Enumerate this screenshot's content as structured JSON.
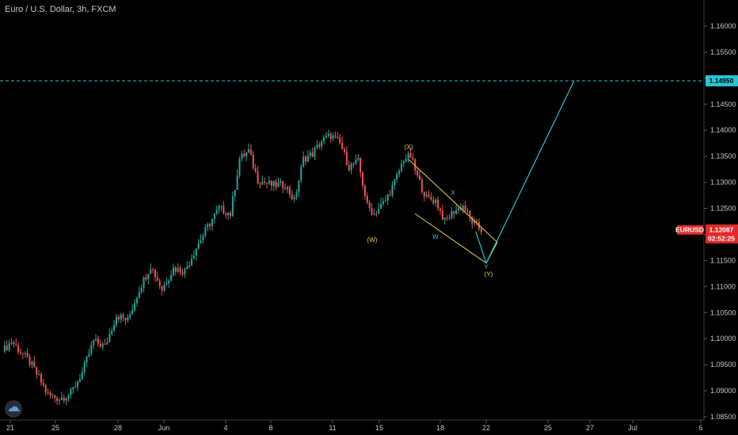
{
  "header": {
    "title": "Euro / U.S. Dollar, 3h, FXCM"
  },
  "colors": {
    "background": "#000000",
    "bull": "#26a69a",
    "bear": "#ef5350",
    "wave_yellow": "#e6d34a",
    "wave_cyan": "#29c5d6",
    "target_line": "#29c5d6",
    "price_tag": "#e02a2a"
  },
  "price_axis": {
    "ticks": [
      "1.16000",
      "1.15500",
      "1.15000",
      "1.14500",
      "1.14000",
      "1.13500",
      "1.13000",
      "1.12500",
      "1.12000",
      "1.11500",
      "1.11000",
      "1.10500",
      "1.10000",
      "1.09500",
      "1.09000",
      "1.08500"
    ]
  },
  "time_axis": {
    "ticks": [
      "21",
      "25",
      "28",
      "Jun",
      "4",
      "8",
      "11",
      "15",
      "18",
      "22",
      "25",
      "27",
      "Jul",
      "6"
    ]
  },
  "target": {
    "price_label": "1.14950",
    "price": 1.1495
  },
  "current_price": {
    "symbol": "EURUSD",
    "price": "1.12087",
    "countdown": "02:52:25"
  },
  "wave_labels": {
    "W_paren": "(W)",
    "X_paren": "(X)",
    "w": "W",
    "x": "X",
    "y": "Y",
    "Y_paren": "(Y)"
  },
  "chart_data": {
    "type": "candlestick",
    "title": "Euro / U.S. Dollar, 3h, FXCM",
    "ylim": [
      1.083,
      1.1645
    ],
    "y_ticks": [
      1.16,
      1.155,
      1.15,
      1.145,
      1.14,
      1.135,
      1.13,
      1.125,
      1.12,
      1.115,
      1.11,
      1.105,
      1.1,
      1.095,
      1.09,
      1.085
    ],
    "x_ticks": [
      "21",
      "25",
      "28",
      "Jun",
      "4",
      "8",
      "11",
      "15",
      "18",
      "22",
      "25",
      "27",
      "Jul",
      "6"
    ],
    "close_path": [
      {
        "i": 0,
        "p": 1.0975
      },
      {
        "i": 4,
        "p": 1.0995
      },
      {
        "i": 8,
        "p": 1.0975
      },
      {
        "i": 12,
        "p": 1.0955
      },
      {
        "i": 16,
        "p": 1.0925
      },
      {
        "i": 20,
        "p": 1.0892
      },
      {
        "i": 25,
        "p": 1.0885
      },
      {
        "i": 30,
        "p": 1.0895
      },
      {
        "i": 35,
        "p": 1.0935
      },
      {
        "i": 40,
        "p": 1.0995
      },
      {
        "i": 45,
        "p": 1.0985
      },
      {
        "i": 50,
        "p": 1.1045
      },
      {
        "i": 55,
        "p": 1.1035
      },
      {
        "i": 60,
        "p": 1.1095
      },
      {
        "i": 65,
        "p": 1.114
      },
      {
        "i": 70,
        "p": 1.1095
      },
      {
        "i": 75,
        "p": 1.1135
      },
      {
        "i": 80,
        "p": 1.113
      },
      {
        "i": 85,
        "p": 1.1175
      },
      {
        "i": 90,
        "p": 1.1215
      },
      {
        "i": 95,
        "p": 1.125
      },
      {
        "i": 100,
        "p": 1.124
      },
      {
        "i": 104,
        "p": 1.1345
      },
      {
        "i": 108,
        "p": 1.136
      },
      {
        "i": 112,
        "p": 1.1305
      },
      {
        "i": 118,
        "p": 1.1295
      },
      {
        "i": 124,
        "p": 1.1295
      },
      {
        "i": 128,
        "p": 1.1265
      },
      {
        "i": 132,
        "p": 1.1345
      },
      {
        "i": 136,
        "p": 1.1355
      },
      {
        "i": 140,
        "p": 1.138
      },
      {
        "i": 144,
        "p": 1.139
      },
      {
        "i": 148,
        "p": 1.1375
      },
      {
        "i": 152,
        "p": 1.133
      },
      {
        "i": 156,
        "p": 1.134
      },
      {
        "i": 160,
        "p": 1.1255
      },
      {
        "i": 163,
        "p": 1.124
      },
      {
        "i": 168,
        "p": 1.1265
      },
      {
        "i": 172,
        "p": 1.13
      },
      {
        "i": 176,
        "p": 1.1345
      },
      {
        "i": 179,
        "p": 1.135
      },
      {
        "i": 182,
        "p": 1.131
      },
      {
        "i": 186,
        "p": 1.127
      },
      {
        "i": 190,
        "p": 1.1265
      },
      {
        "i": 194,
        "p": 1.1225
      },
      {
        "i": 198,
        "p": 1.1245
      },
      {
        "i": 202,
        "p": 1.1255
      },
      {
        "i": 206,
        "p": 1.1225
      },
      {
        "i": 210,
        "p": 1.1208
      }
    ],
    "wave_points": {
      "W": 1.1225,
      "X_paren": 1.135,
      "w": 1.1225,
      "x": 1.127,
      "y": 1.1145,
      "Y_paren": 1.1145
    },
    "projection_target": 1.1495,
    "last_price": 1.12087
  }
}
